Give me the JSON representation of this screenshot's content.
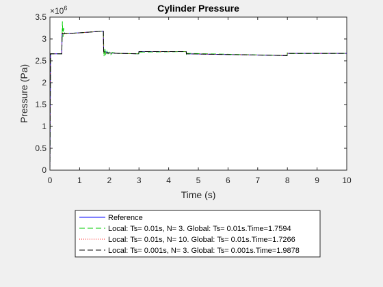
{
  "chart_data": {
    "type": "line",
    "title": "Cylinder Pressure",
    "xlabel": "Time (s)",
    "ylabel": "Pressure (Pa)",
    "xlim": [
      0,
      10
    ],
    "ylim": [
      0,
      3500000
    ],
    "x_ticks": [
      0,
      1,
      2,
      3,
      4,
      5,
      6,
      7,
      8,
      9,
      10
    ],
    "x_tick_labels": [
      "0",
      "1",
      "2",
      "3",
      "4",
      "5",
      "6",
      "7",
      "8",
      "9",
      "10"
    ],
    "y_ticks": [
      0,
      500000,
      1000000,
      1500000,
      2000000,
      2500000,
      3000000,
      3500000
    ],
    "y_tick_labels": [
      "0",
      "0.5",
      "1",
      "1.5",
      "2",
      "2.5",
      "3",
      "3.5"
    ],
    "y_exponent_base": "×10",
    "y_exponent_power": "6",
    "grid": false,
    "legend_position": "below plot",
    "series": [
      {
        "name": "Reference",
        "color": "#0000ff",
        "dash": "solid",
        "points": [
          [
            0,
            0
          ],
          [
            0.02,
            2660000
          ],
          [
            0.4,
            2660000
          ],
          [
            0.41,
            3120000
          ],
          [
            1.0,
            3140000
          ],
          [
            1.8,
            3180000
          ],
          [
            1.81,
            2720000
          ],
          [
            2.0,
            2680000
          ],
          [
            2.3,
            2670000
          ],
          [
            2.99,
            2660000
          ],
          [
            3.0,
            2710000
          ],
          [
            4.59,
            2710000
          ],
          [
            4.6,
            2660000
          ],
          [
            7.99,
            2620000
          ],
          [
            8.0,
            2670000
          ],
          [
            10,
            2670000
          ]
        ]
      },
      {
        "name": "Local: Ts= 0.01s, N= 3. Global: Ts= 0.01s.Time=1.7594",
        "color": "#00cc00",
        "dash": "8,4",
        "points": [
          [
            0,
            0
          ],
          [
            0.02,
            2660000
          ],
          [
            0.4,
            2660000
          ],
          [
            0.42,
            3400000
          ],
          [
            0.44,
            3050000
          ],
          [
            0.46,
            3250000
          ],
          [
            0.5,
            3120000
          ],
          [
            1.0,
            3140000
          ],
          [
            1.8,
            3180000
          ],
          [
            1.82,
            2600000
          ],
          [
            1.85,
            2780000
          ],
          [
            1.88,
            2650000
          ],
          [
            1.92,
            2720000
          ],
          [
            1.96,
            2660000
          ],
          [
            2.0,
            2700000
          ],
          [
            2.05,
            2640000
          ],
          [
            2.1,
            2690000
          ],
          [
            2.3,
            2670000
          ],
          [
            2.99,
            2660000
          ],
          [
            3.0,
            2720000
          ],
          [
            3.02,
            2700000
          ],
          [
            4.59,
            2710000
          ],
          [
            4.6,
            2650000
          ],
          [
            4.62,
            2670000
          ],
          [
            7.99,
            2620000
          ],
          [
            8.0,
            2680000
          ],
          [
            8.02,
            2665000
          ],
          [
            10,
            2670000
          ]
        ]
      },
      {
        "name": "Local: Ts= 0.01s, N= 10. Global: Ts= 0.01s.Time=1.7266",
        "color": "#ff0000",
        "dash": "1,2",
        "points": [
          [
            0,
            0
          ],
          [
            0.02,
            2660000
          ],
          [
            0.4,
            2660000
          ],
          [
            0.41,
            3150000
          ],
          [
            0.45,
            3110000
          ],
          [
            1.0,
            3140000
          ],
          [
            1.8,
            3180000
          ],
          [
            1.81,
            2700000
          ],
          [
            1.85,
            2690000
          ],
          [
            2.0,
            2680000
          ],
          [
            2.3,
            2670000
          ],
          [
            2.99,
            2660000
          ],
          [
            3.0,
            2710000
          ],
          [
            4.59,
            2710000
          ],
          [
            4.6,
            2660000
          ],
          [
            7.99,
            2620000
          ],
          [
            8.0,
            2670000
          ],
          [
            10,
            2670000
          ]
        ]
      },
      {
        "name": "Local: Ts= 0.001s, N= 3. Global: Ts= 0.001s.Time=1.9878",
        "color": "#000000",
        "dash": "8,4",
        "points": [
          [
            0,
            0
          ],
          [
            0.02,
            2660000
          ],
          [
            0.4,
            2660000
          ],
          [
            0.41,
            3120000
          ],
          [
            1.0,
            3140000
          ],
          [
            1.8,
            3180000
          ],
          [
            1.81,
            2720000
          ],
          [
            1.83,
            2670000
          ],
          [
            2.0,
            2680000
          ],
          [
            2.3,
            2670000
          ],
          [
            2.99,
            2660000
          ],
          [
            3.0,
            2710000
          ],
          [
            4.59,
            2710000
          ],
          [
            4.6,
            2660000
          ],
          [
            7.99,
            2620000
          ],
          [
            8.0,
            2670000
          ],
          [
            10,
            2670000
          ]
        ]
      }
    ]
  }
}
